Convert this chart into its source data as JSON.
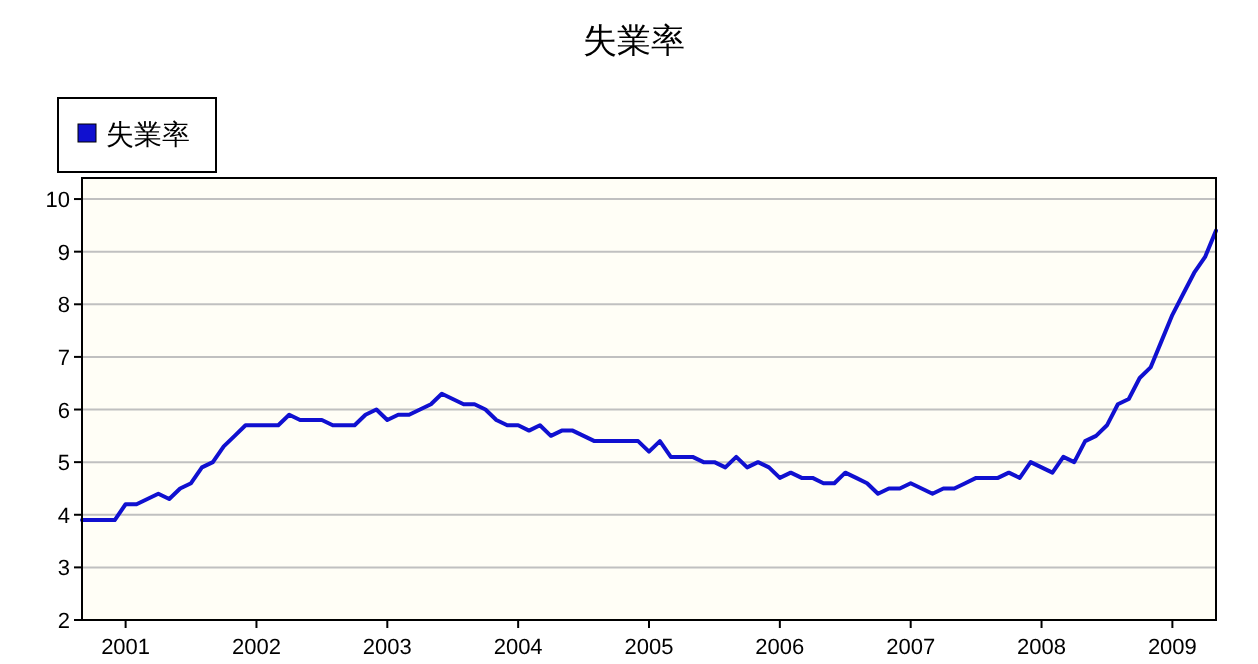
{
  "chart_data": {
    "type": "line",
    "title": "失業率",
    "x": [
      "2000-09",
      "2000-10",
      "2000-11",
      "2000-12",
      "2001-01",
      "2001-02",
      "2001-03",
      "2001-04",
      "2001-05",
      "2001-06",
      "2001-07",
      "2001-08",
      "2001-09",
      "2001-10",
      "2001-11",
      "2001-12",
      "2002-01",
      "2002-02",
      "2002-03",
      "2002-04",
      "2002-05",
      "2002-06",
      "2002-07",
      "2002-08",
      "2002-09",
      "2002-10",
      "2002-11",
      "2002-12",
      "2003-01",
      "2003-02",
      "2003-03",
      "2003-04",
      "2003-05",
      "2003-06",
      "2003-07",
      "2003-08",
      "2003-09",
      "2003-10",
      "2003-11",
      "2003-12",
      "2004-01",
      "2004-02",
      "2004-03",
      "2004-04",
      "2004-05",
      "2004-06",
      "2004-07",
      "2004-08",
      "2004-09",
      "2004-10",
      "2004-11",
      "2004-12",
      "2005-01",
      "2005-02",
      "2005-03",
      "2005-04",
      "2005-05",
      "2005-06",
      "2005-07",
      "2005-08",
      "2005-09",
      "2005-10",
      "2005-11",
      "2005-12",
      "2006-01",
      "2006-02",
      "2006-03",
      "2006-04",
      "2006-05",
      "2006-06",
      "2006-07",
      "2006-08",
      "2006-09",
      "2006-10",
      "2006-11",
      "2006-12",
      "2007-01",
      "2007-02",
      "2007-03",
      "2007-04",
      "2007-05",
      "2007-06",
      "2007-07",
      "2007-08",
      "2007-09",
      "2007-10",
      "2007-11",
      "2007-12",
      "2008-01",
      "2008-02",
      "2008-03",
      "2008-04",
      "2008-05",
      "2008-06",
      "2008-07",
      "2008-08",
      "2008-09",
      "2008-10",
      "2008-11",
      "2008-12",
      "2009-01",
      "2009-02",
      "2009-03",
      "2009-04",
      "2009-05"
    ],
    "series": [
      {
        "name": "失業率",
        "color": "#1010d0",
        "values": [
          3.9,
          3.9,
          3.9,
          3.9,
          4.2,
          4.2,
          4.3,
          4.4,
          4.3,
          4.5,
          4.6,
          4.9,
          5.0,
          5.3,
          5.5,
          5.7,
          5.7,
          5.7,
          5.7,
          5.9,
          5.8,
          5.8,
          5.8,
          5.7,
          5.7,
          5.7,
          5.9,
          6.0,
          5.8,
          5.9,
          5.9,
          6.0,
          6.1,
          6.3,
          6.2,
          6.1,
          6.1,
          6.0,
          5.8,
          5.7,
          5.7,
          5.6,
          5.7,
          5.5,
          5.6,
          5.6,
          5.5,
          5.4,
          5.4,
          5.4,
          5.4,
          5.4,
          5.2,
          5.4,
          5.1,
          5.1,
          5.1,
          5.0,
          5.0,
          4.9,
          5.1,
          4.9,
          5.0,
          4.9,
          4.7,
          4.8,
          4.7,
          4.7,
          4.6,
          4.6,
          4.8,
          4.7,
          4.6,
          4.4,
          4.5,
          4.5,
          4.6,
          4.5,
          4.4,
          4.5,
          4.5,
          4.6,
          4.7,
          4.7,
          4.7,
          4.8,
          4.7,
          5.0,
          4.9,
          4.8,
          5.1,
          5.0,
          5.4,
          5.5,
          5.7,
          6.1,
          6.2,
          6.6,
          6.8,
          7.3,
          7.8,
          8.2,
          8.6,
          8.9,
          9.4
        ]
      }
    ],
    "xlim": [
      "2000-09",
      "2009-05"
    ],
    "xticks": [
      {
        "value": "2001-01",
        "label": "2001"
      },
      {
        "value": "2002-01",
        "label": "2002"
      },
      {
        "value": "2003-01",
        "label": "2003"
      },
      {
        "value": "2004-01",
        "label": "2004"
      },
      {
        "value": "2005-01",
        "label": "2005"
      },
      {
        "value": "2006-01",
        "label": "2006"
      },
      {
        "value": "2007-01",
        "label": "2007"
      },
      {
        "value": "2008-01",
        "label": "2008"
      },
      {
        "value": "2009-01",
        "label": "2009"
      }
    ],
    "ylim": [
      2,
      10.4
    ],
    "yticks": [
      2,
      3,
      4,
      5,
      6,
      7,
      8,
      9,
      10
    ],
    "grid": "y",
    "legend": "top left"
  }
}
